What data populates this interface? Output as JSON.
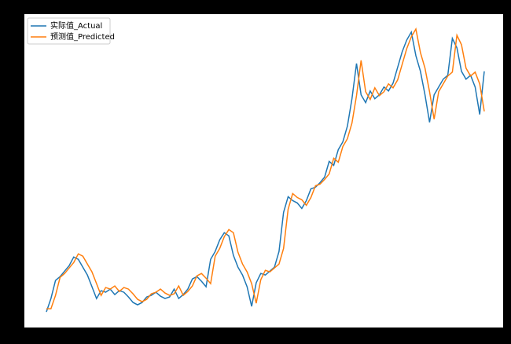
{
  "chart_data": {
    "type": "line",
    "series": [
      {
        "name": "实际值_Actual",
        "color": "#1f77b4",
        "values": [
          20,
          37,
          60,
          65,
          72,
          79,
          90,
          87,
          77,
          67,
          52,
          37,
          47,
          45,
          49,
          42,
          47,
          45,
          39,
          32,
          29,
          32,
          39,
          41,
          45,
          40,
          37,
          39,
          49,
          37,
          42,
          49,
          62,
          65,
          59,
          52,
          87,
          97,
          112,
          121,
          117,
          92,
          77,
          67,
          52,
          27,
          57,
          69,
          67,
          72,
          77,
          97,
          147,
          167,
          162,
          159,
          152,
          162,
          177,
          179,
          185,
          192,
          212,
          207,
          227,
          237,
          257,
          292,
          337,
          297,
          287,
          302,
          292,
          297,
          307,
          302,
          312,
          332,
          352,
          367,
          377,
          347,
          327,
          297,
          262,
          297,
          307,
          317,
          322,
          369,
          357,
          327,
          317,
          322,
          307,
          272,
          327
        ]
      },
      {
        "name": "预测值_Predicted",
        "color": "#ff7f0e",
        "values": [
          24,
          24,
          41,
          64,
          69,
          76,
          83,
          94,
          91,
          81,
          71,
          56,
          41,
          51,
          49,
          53,
          46,
          51,
          49,
          43,
          36,
          33,
          36,
          43,
          45,
          49,
          44,
          41,
          43,
          53,
          41,
          46,
          53,
          66,
          69,
          63,
          56,
          91,
          101,
          116,
          125,
          121,
          96,
          81,
          71,
          56,
          31,
          61,
          73,
          71,
          76,
          81,
          101,
          151,
          171,
          166,
          163,
          156,
          166,
          181,
          183,
          189,
          196,
          216,
          211,
          231,
          241,
          261,
          296,
          341,
          301,
          291,
          306,
          296,
          301,
          311,
          306,
          316,
          336,
          356,
          371,
          381,
          351,
          331,
          301,
          266,
          301,
          311,
          321,
          326,
          373,
          361,
          331,
          321,
          326,
          311,
          276
        ]
      }
    ],
    "ylim": [
      0,
      400
    ],
    "legend": "upper left"
  }
}
